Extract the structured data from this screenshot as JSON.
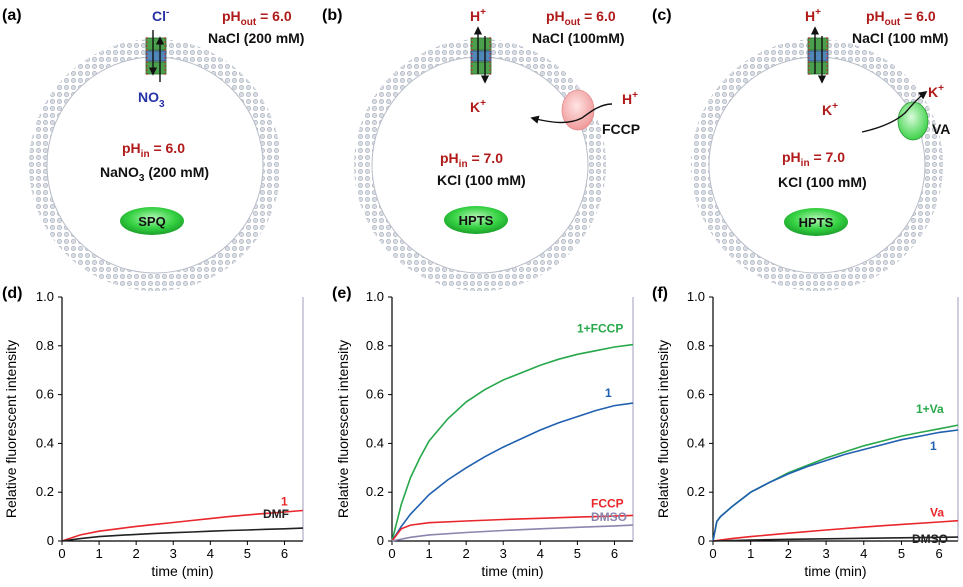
{
  "diagrams": [
    {
      "panel": "(a)",
      "ph_out": {
        "base": "pH",
        "sub": "out",
        "rest": " = 6.0"
      },
      "outer_salt": "NaCl (200 mM)",
      "ph_in": {
        "base": "pH",
        "sub": "in",
        "rest": " = 6.0"
      },
      "inner_salt_parts": {
        "pre": "NaNO",
        "sub": "3",
        "post": " (200 mM)"
      },
      "dye": "SPQ",
      "top_ion": "Cl",
      "top_ion_sup": "-",
      "bottom_ion": {
        "base": "NO",
        "sub": "3"
      }
    },
    {
      "panel": "(b)",
      "ph_out": {
        "base": "pH",
        "sub": "out",
        "rest": " = 6.0"
      },
      "outer_salt": "NaCl (100mM)",
      "ph_in": {
        "base": "pH",
        "sub": "in",
        "rest": " = 7.0"
      },
      "inner_salt": "KCl (100 mM)",
      "dye": "HPTS",
      "top_ion": "H",
      "top_ion_sup": "+",
      "bottom_ion": {
        "base": "K",
        "sup": "+"
      },
      "carrier_ion": "H",
      "carrier_ion_sup": "+",
      "carrier_label": "FCCP"
    },
    {
      "panel": "(c)",
      "ph_out": {
        "base": "pH",
        "sub": "out",
        "rest": " = 6.0"
      },
      "outer_salt": "NaCl (100 mM)",
      "ph_in": {
        "base": "pH",
        "sub": "in",
        "rest": " = 7.0"
      },
      "inner_salt": "KCl (100 mM)",
      "dye": "HPTS",
      "top_ion": "H",
      "top_ion_sup": "+",
      "bottom_ion": {
        "base": "K",
        "sup": "+"
      },
      "carrier_ion": "K",
      "carrier_ion_sup": "+",
      "carrier_label": "VA"
    }
  ],
  "colors": {
    "red": "#e8262b",
    "blue": "#2060b0",
    "green": "#27a84a",
    "black": "#222222",
    "gray": "#8a86ae",
    "dye_fill": "#3fd34d"
  },
  "chart_data": [
    {
      "panel": "(d)",
      "type": "line",
      "xlabel": "time (min)",
      "ylabel": "Relative fluorescent intensity",
      "xlim": [
        0,
        6.5
      ],
      "ylim": [
        0,
        1.0
      ],
      "xticks": [
        0,
        1,
        2,
        3,
        4,
        5,
        6
      ],
      "yticks": [
        0,
        0.2,
        0.4,
        0.6,
        0.8,
        1.0
      ],
      "ytick_labels": [
        "0",
        "0.2",
        "0.4",
        "0.6",
        "0.8",
        "1.0"
      ],
      "series": [
        {
          "name": "1",
          "color": "#e8262b",
          "x": [
            0,
            0.5,
            1,
            1.5,
            2,
            2.5,
            3,
            3.5,
            4,
            4.5,
            5,
            5.5,
            6,
            6.5
          ],
          "y": [
            0,
            0.025,
            0.04,
            0.05,
            0.06,
            0.068,
            0.076,
            0.084,
            0.092,
            0.1,
            0.107,
            0.113,
            0.119,
            0.125
          ]
        },
        {
          "name": "DMF",
          "color": "#222222",
          "x": [
            0,
            0.5,
            1,
            1.5,
            2,
            2.5,
            3,
            3.5,
            4,
            4.5,
            5,
            5.5,
            6,
            6.5
          ],
          "y": [
            0,
            0.01,
            0.018,
            0.023,
            0.027,
            0.031,
            0.034,
            0.037,
            0.04,
            0.043,
            0.045,
            0.048,
            0.05,
            0.053
          ]
        }
      ]
    },
    {
      "panel": "(e)",
      "type": "line",
      "xlabel": "time (min)",
      "ylabel": "Relative fluorescent intensity",
      "xlim": [
        0,
        6.5
      ],
      "ylim": [
        0,
        1.0
      ],
      "xticks": [
        0,
        1,
        2,
        3,
        4,
        5,
        6
      ],
      "yticks": [
        0,
        0.2,
        0.4,
        0.6,
        0.8,
        1.0
      ],
      "ytick_labels": [
        "0",
        "0.2",
        "0.4",
        "0.6",
        "0.8",
        "1.0"
      ],
      "series": [
        {
          "name": "1+FCCP",
          "color": "#27a84a",
          "x": [
            0,
            0.25,
            0.5,
            0.75,
            1,
            1.5,
            2,
            2.5,
            3,
            3.5,
            4,
            4.5,
            5,
            5.5,
            6,
            6.5
          ],
          "y": [
            0,
            0.15,
            0.26,
            0.34,
            0.41,
            0.5,
            0.57,
            0.62,
            0.66,
            0.69,
            0.72,
            0.745,
            0.765,
            0.78,
            0.795,
            0.805
          ]
        },
        {
          "name": "1",
          "color": "#2060b0",
          "x": [
            0,
            0.25,
            0.5,
            0.75,
            1,
            1.5,
            2,
            2.5,
            3,
            3.5,
            4,
            4.5,
            5,
            5.5,
            6,
            6.5
          ],
          "y": [
            0,
            0.06,
            0.11,
            0.15,
            0.19,
            0.25,
            0.3,
            0.345,
            0.385,
            0.42,
            0.455,
            0.485,
            0.51,
            0.535,
            0.555,
            0.565
          ]
        },
        {
          "name": "FCCP",
          "color": "#e8262b",
          "x": [
            0,
            0.25,
            0.5,
            1,
            2,
            3,
            4,
            5,
            6,
            6.5
          ],
          "y": [
            0,
            0.05,
            0.065,
            0.075,
            0.082,
            0.088,
            0.093,
            0.098,
            0.102,
            0.105
          ]
        },
        {
          "name": "DMSO",
          "color": "#8a86ae",
          "x": [
            0,
            0.5,
            1,
            2,
            3,
            4,
            5,
            6,
            6.5
          ],
          "y": [
            0,
            0.015,
            0.025,
            0.035,
            0.043,
            0.05,
            0.056,
            0.062,
            0.065
          ]
        }
      ]
    },
    {
      "panel": "(f)",
      "type": "line",
      "xlabel": "time (min)",
      "ylabel": "Relative fluorescent intensity",
      "xlim": [
        0,
        6.5
      ],
      "ylim": [
        0,
        1.0
      ],
      "xticks": [
        0,
        1,
        2,
        3,
        4,
        5,
        6
      ],
      "yticks": [
        0,
        0.2,
        0.4,
        0.6,
        0.8,
        1.0
      ],
      "ytick_labels": [
        "0",
        "0.2",
        "0.4",
        "0.6",
        "0.8",
        "1.0"
      ],
      "series": [
        {
          "name": "1+Va",
          "color": "#27a84a",
          "x": [
            0,
            0.1,
            0.2,
            0.5,
            1,
            1.5,
            2,
            2.5,
            3,
            3.5,
            4,
            4.5,
            5,
            5.5,
            6,
            6.5
          ],
          "y": [
            0,
            0.08,
            0.1,
            0.14,
            0.2,
            0.24,
            0.28,
            0.31,
            0.34,
            0.365,
            0.39,
            0.41,
            0.43,
            0.445,
            0.46,
            0.475
          ]
        },
        {
          "name": "1",
          "color": "#2060b0",
          "x": [
            0,
            0.1,
            0.2,
            0.5,
            1,
            1.5,
            2,
            2.5,
            3,
            3.5,
            4,
            4.5,
            5,
            5.5,
            6,
            6.5
          ],
          "y": [
            0,
            0.08,
            0.1,
            0.14,
            0.2,
            0.24,
            0.275,
            0.305,
            0.33,
            0.355,
            0.375,
            0.395,
            0.415,
            0.43,
            0.445,
            0.455
          ]
        },
        {
          "name": "Va",
          "color": "#e8262b",
          "x": [
            0,
            0.5,
            1,
            2,
            3,
            4,
            5,
            6,
            6.5
          ],
          "y": [
            0,
            0.01,
            0.018,
            0.032,
            0.045,
            0.057,
            0.068,
            0.078,
            0.083
          ]
        },
        {
          "name": "DMSO",
          "color": "#222222",
          "x": [
            0,
            1,
            2,
            3,
            4,
            5,
            6,
            6.5
          ],
          "y": [
            0,
            0.004,
            0.007,
            0.009,
            0.011,
            0.013,
            0.015,
            0.016
          ]
        }
      ]
    }
  ]
}
